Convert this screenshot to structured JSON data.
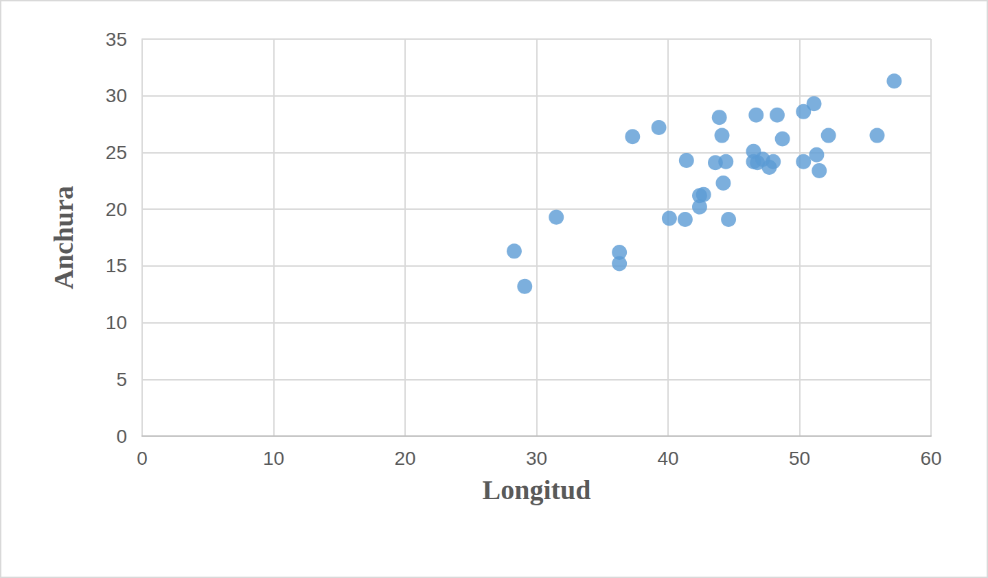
{
  "chart_data": {
    "type": "scatter",
    "x_label": "Longitud",
    "y_label": "Anchura",
    "x": [
      28.3,
      29.1,
      31.5,
      36.3,
      36.3,
      37.3,
      39.3,
      40.1,
      41.3,
      41.4,
      42.4,
      42.7,
      42.4,
      43.6,
      43.9,
      44.1,
      44.2,
      44.4,
      44.6,
      46.5,
      46.5,
      46.7,
      46.8,
      47.2,
      47.7,
      48.0,
      48.3,
      48.7,
      50.3,
      50.3,
      51.1,
      51.3,
      51.5,
      52.2,
      55.9,
      57.2
    ],
    "values": [
      16.3,
      13.2,
      19.3,
      16.2,
      15.2,
      26.4,
      27.2,
      19.2,
      19.1,
      24.3,
      21.2,
      21.3,
      20.2,
      24.1,
      28.1,
      26.5,
      22.3,
      24.2,
      19.1,
      25.1,
      24.2,
      28.3,
      24.1,
      24.4,
      23.7,
      24.2,
      28.3,
      26.2,
      28.6,
      24.2,
      29.3,
      24.8,
      23.4,
      26.5,
      26.5,
      31.3
    ],
    "color": "#5b9bd5",
    "marker": "circle",
    "xlim": [
      0,
      60
    ],
    "xticks": [
      0,
      10,
      20,
      30,
      40,
      50,
      60
    ],
    "ylim": [
      0,
      35
    ],
    "yticks": [
      0,
      5,
      10,
      15,
      20,
      25,
      30,
      35
    ],
    "grid": true
  }
}
